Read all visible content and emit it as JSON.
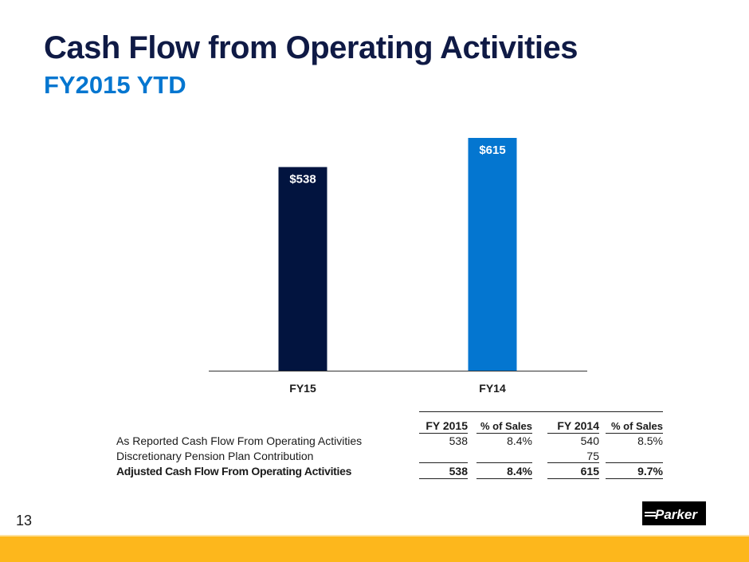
{
  "header": {
    "title": "Cash Flow from Operating Activities",
    "subtitle": "FY2015 YTD"
  },
  "colors": {
    "title": "#0f1a45",
    "subtitle": "#0476d0",
    "bar_fy15": "#02143f",
    "bar_fy14": "#0476d0",
    "footer_band": "#fdb71c"
  },
  "chart_data": {
    "type": "bar",
    "title": "",
    "xlabel": "",
    "ylabel": "",
    "categories": [
      "FY15",
      "FY14"
    ],
    "values": [
      538,
      615
    ],
    "data_labels": [
      "$538",
      "$615"
    ],
    "ylim": [
      0,
      650
    ],
    "grid": false,
    "legend": "none"
  },
  "table": {
    "headers": [
      "FY 2015",
      "% of Sales",
      "FY 2014",
      "% of Sales"
    ],
    "rows": [
      {
        "label": "As Reported Cash Flow From Operating Activities",
        "values": [
          "538",
          "8.4%",
          "540",
          "8.5%"
        ],
        "bold": false
      },
      {
        "label": "Discretionary Pension Plan Contribution",
        "values": [
          "",
          "",
          "75",
          ""
        ],
        "bold": false
      },
      {
        "label": "Adjusted Cash Flow From Operating Activities",
        "values": [
          "538",
          "8.4%",
          "615",
          "9.7%"
        ],
        "bold": true
      }
    ]
  },
  "footer": {
    "page_number": "13",
    "logo_text": "Parker"
  }
}
